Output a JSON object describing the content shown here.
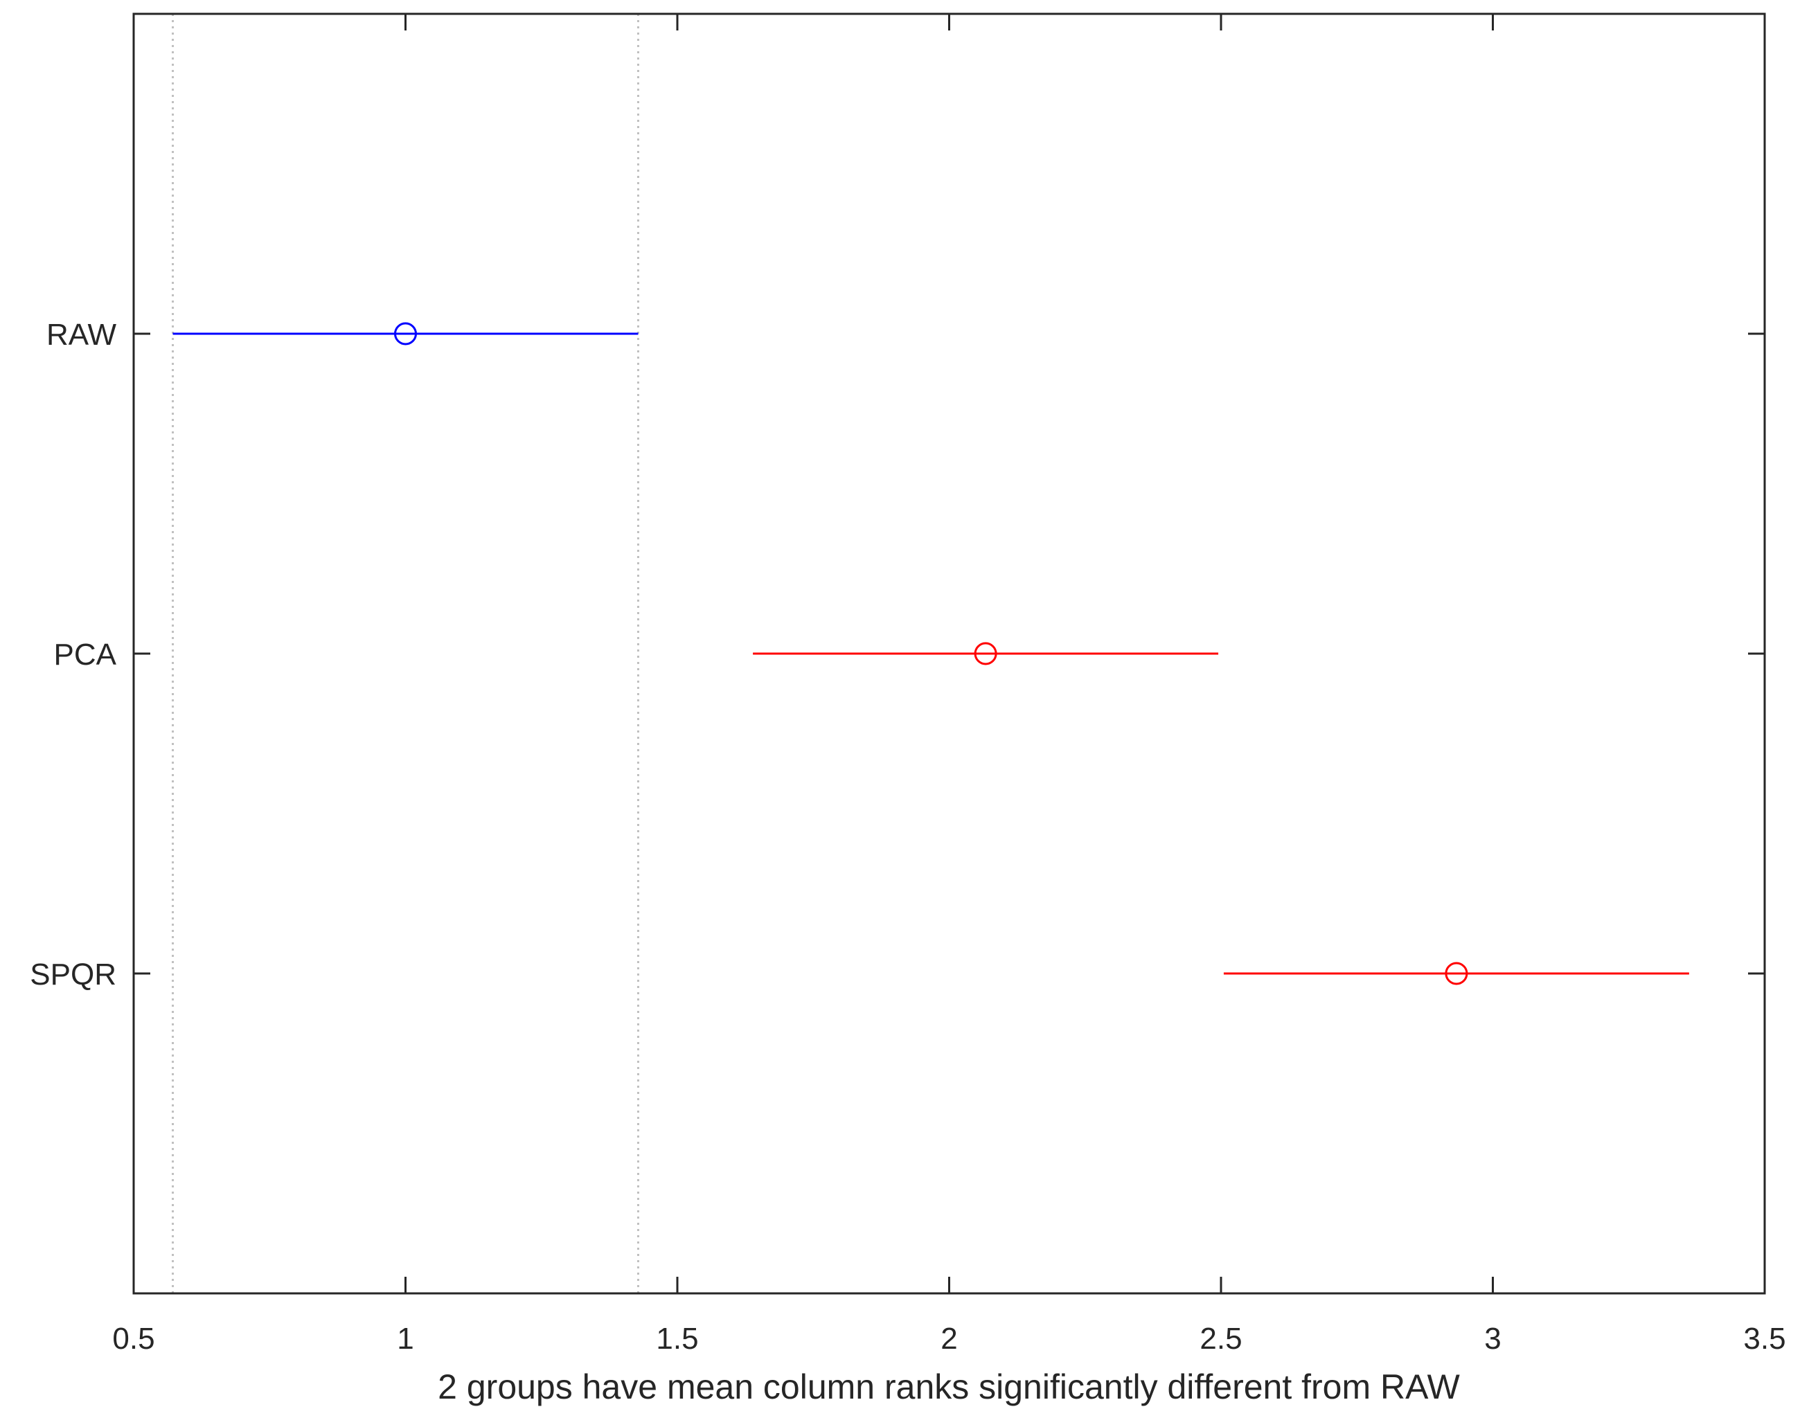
{
  "chart_data": {
    "type": "multiple-comparison-interval",
    "xlabel": "2 groups have mean column ranks significantly different from RAW",
    "xlim": [
      0.5,
      3.5
    ],
    "x_ticks": [
      0.5,
      1,
      1.5,
      2,
      2.5,
      3,
      3.5
    ],
    "x_tick_labels": [
      "0.5",
      "1",
      "1.5",
      "2",
      "2.5",
      "3",
      "3.5"
    ],
    "reference_lines": [
      0.572,
      1.428
    ],
    "grid": false,
    "groups": [
      {
        "label": "RAW",
        "mean": 1.0,
        "lower": 0.572,
        "upper": 1.428,
        "color": "#0000ff"
      },
      {
        "label": "PCA",
        "mean": 2.067,
        "lower": 1.639,
        "upper": 2.495,
        "color": "#ff0000"
      },
      {
        "label": "SPQR",
        "mean": 2.933,
        "lower": 2.505,
        "upper": 3.361,
        "color": "#ff0000"
      }
    ]
  }
}
